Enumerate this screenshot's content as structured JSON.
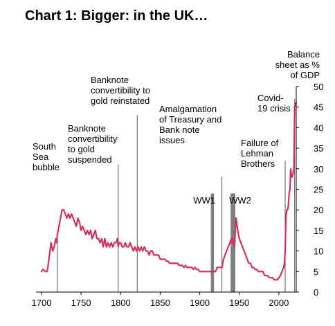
{
  "chart_data": {
    "type": "line",
    "title": "Chart 1:  Bigger:  in the UK…",
    "y_axis_label": [
      "Balance",
      "sheet as %",
      "of GDP"
    ],
    "xlim": [
      1700,
      2022
    ],
    "ylim": [
      0,
      50
    ],
    "x_ticks": [
      1700,
      1750,
      1800,
      1850,
      1900,
      1950,
      2000
    ],
    "y_ticks": [
      0,
      5,
      10,
      15,
      20,
      25,
      30,
      35,
      40,
      45,
      50
    ],
    "series_color": "#d42e5b",
    "event_line_color": "#555555",
    "war_bar_color": "#7f7f7f",
    "series": [
      {
        "x": [
          1700,
          1702,
          1705,
          1707,
          1708,
          1710,
          1712,
          1713,
          1714,
          1716,
          1718,
          1719,
          1720,
          1721,
          1722,
          1724,
          1726,
          1728,
          1730,
          1732,
          1734,
          1736,
          1738,
          1740,
          1742,
          1744,
          1746,
          1748,
          1750,
          1752,
          1754,
          1756,
          1758,
          1760,
          1762,
          1764,
          1766,
          1768,
          1770,
          1772,
          1774,
          1776,
          1778,
          1780,
          1782,
          1784,
          1786,
          1788,
          1790,
          1792,
          1794,
          1796,
          1797,
          1798,
          1800,
          1802,
          1804,
          1806,
          1808,
          1810,
          1812,
          1814,
          1816,
          1818,
          1820,
          1822,
          1824,
          1826,
          1828,
          1830,
          1832,
          1834,
          1836,
          1838,
          1840,
          1842,
          1844,
          1846,
          1848,
          1850,
          1852,
          1854,
          1856,
          1858,
          1860,
          1862,
          1864,
          1866,
          1868,
          1870,
          1872,
          1874,
          1876,
          1878,
          1880,
          1882,
          1884,
          1886,
          1888,
          1890,
          1892,
          1894,
          1896,
          1898,
          1900,
          1902,
          1904,
          1906,
          1908,
          1910,
          1912,
          1914,
          1916,
          1918,
          1920,
          1922,
          1924,
          1926,
          1928,
          1930,
          1932,
          1934,
          1936,
          1938,
          1939,
          1940,
          1941,
          1942,
          1944,
          1945,
          1946,
          1948,
          1950,
          1952,
          1954,
          1956,
          1958,
          1960,
          1962,
          1964,
          1966,
          1968,
          1970,
          1972,
          1974,
          1976,
          1978,
          1980,
          1982,
          1984,
          1986,
          1988,
          1990,
          1992,
          1994,
          1996,
          1998,
          2000,
          2002,
          2004,
          2006,
          2007,
          2008,
          2009,
          2010,
          2011,
          2012,
          2013,
          2014,
          2015,
          2016,
          2017,
          2018,
          2019,
          2020,
          2021,
          2022
        ],
        "y": [
          5,
          5.5,
          5,
          5,
          6,
          9,
          12,
          11,
          10,
          11,
          13,
          12,
          14,
          15,
          16,
          18,
          20,
          20,
          19,
          18,
          19,
          18,
          19,
          18,
          17,
          16,
          18,
          17,
          15,
          16,
          15,
          14,
          15,
          14,
          15,
          13,
          14,
          15,
          13,
          13,
          12,
          13,
          11,
          13,
          11,
          12,
          11,
          12,
          11,
          12,
          12,
          13,
          11,
          12,
          12,
          11,
          11,
          12,
          11,
          11,
          12,
          11,
          10,
          11,
          10,
          11,
          10,
          11,
          10,
          11,
          10,
          10,
          9,
          10,
          10,
          9,
          9,
          9,
          9,
          8,
          8,
          8,
          8,
          7.5,
          7.5,
          7,
          7,
          7,
          7,
          7,
          7,
          6.5,
          6.5,
          6.5,
          6,
          6.5,
          6,
          6,
          6,
          6,
          5.5,
          6,
          5.5,
          5.5,
          5,
          5,
          5,
          5,
          5,
          5,
          5,
          5,
          5,
          5,
          5,
          6,
          6,
          6,
          6,
          8,
          9,
          10,
          11,
          12,
          12.5,
          13,
          12,
          13,
          11,
          15,
          18,
          15,
          13,
          12,
          11,
          10,
          9,
          8,
          7,
          7,
          6,
          6,
          5.5,
          5.5,
          5,
          5,
          5,
          5,
          4,
          4,
          4,
          3.5,
          3.5,
          3.5,
          3,
          3,
          3,
          3.5,
          4,
          5,
          6,
          7,
          10,
          18,
          20,
          20,
          21,
          24,
          25,
          30,
          28,
          28,
          29,
          30,
          45,
          46,
          46
        ]
      }
    ],
    "event_lines": [
      {
        "year": 1720,
        "label": [
          "South",
          "Sea",
          "bubble"
        ]
      },
      {
        "year": 1797,
        "label": [
          "Banknote",
          "convertibility",
          "to gold",
          "suspended"
        ]
      },
      {
        "year": 1821,
        "label": [
          "Banknote",
          "convertibility to",
          "gold reinstated"
        ]
      },
      {
        "year": 1928,
        "label": [
          "Amalgamation",
          "of Treasury and",
          "Bank note",
          "issues"
        ]
      },
      {
        "year": 2008,
        "label": [
          "Failure of",
          "Lehman",
          "Brothers"
        ]
      },
      {
        "year": 2020,
        "label": [
          "Covid-",
          "19 crisis"
        ]
      }
    ],
    "war_bars": [
      {
        "from": 1914,
        "to": 1918,
        "label": "WW1"
      },
      {
        "from": 1939,
        "to": 1945,
        "label": "WW2"
      }
    ]
  }
}
